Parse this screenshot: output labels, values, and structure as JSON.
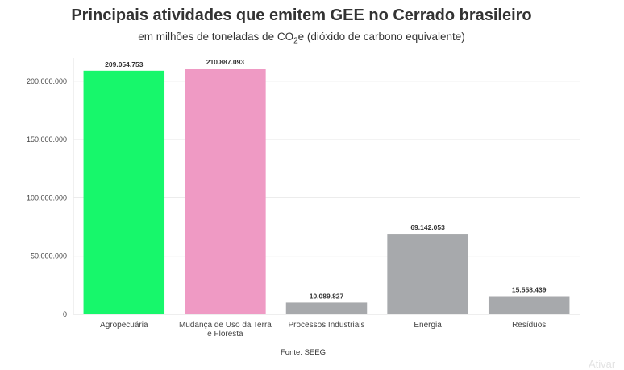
{
  "chart_data": {
    "type": "bar",
    "title": "Principais atividades que emitem GEE no Cerrado brasileiro",
    "subtitle_pre": "em milhões de toneladas de CO",
    "subtitle_sub": "2",
    "subtitle_post": "e (dióxido de carbono equivalente)",
    "categories": [
      "Agropecuária",
      "Mudança de Uso da Terra e Floresta",
      "Processos Industriais",
      "Energia",
      "Resíduos"
    ],
    "category_lines": [
      [
        "Agropecuária"
      ],
      [
        "Mudança de Uso da Terra",
        "e Floresta"
      ],
      [
        "Processos Industriais"
      ],
      [
        "Energia"
      ],
      [
        "Resíduos"
      ]
    ],
    "values": [
      209054753,
      210887093,
      10089827,
      69142053,
      15558439
    ],
    "data_labels": [
      "209.054.753",
      "210.887.093",
      "10.089.827",
      "69.142.053",
      "15.558.439"
    ],
    "colors": [
      "#17f76b",
      "#ef9ac4",
      "#a7a9ac",
      "#a7a9ac",
      "#a7a9ac"
    ],
    "ylim": [
      0,
      220000000
    ],
    "yticks": [
      0,
      50000000,
      100000000,
      150000000,
      200000000
    ],
    "ytick_labels": [
      "0",
      "50.000.000",
      "100.000.000",
      "150.000.000",
      "200.000.000"
    ],
    "grid": true,
    "xlabel": "",
    "ylabel": "",
    "source": "Fonte: SEEG",
    "watermark": "Ativar"
  }
}
